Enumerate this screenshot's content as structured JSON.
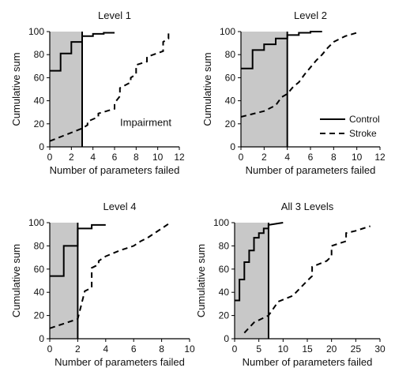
{
  "legend": {
    "placement": "inside panel 2, bottom-right",
    "entries": [
      {
        "name": "Control",
        "style": "solid"
      },
      {
        "name": "Stroke",
        "style": "dashed"
      }
    ]
  },
  "chart_data": [
    {
      "type": "line",
      "title": "Level 1",
      "xlabel": "Number of parameters failed",
      "ylabel": "Cumulative sum",
      "xlim": [
        0,
        12
      ],
      "ylim": [
        0,
        100
      ],
      "xticks": [
        0,
        2,
        4,
        6,
        8,
        10,
        12
      ],
      "yticks": [
        0,
        20,
        40,
        60,
        80,
        100
      ],
      "grid": false,
      "shaded_region": {
        "x": [
          0,
          3
        ],
        "y": [
          0,
          100
        ],
        "color": "#c8c8c8"
      },
      "threshold": {
        "x": 3,
        "label": "Impairment"
      },
      "series": [
        {
          "name": "Control",
          "style": "solid",
          "step": true,
          "x": [
            0,
            1,
            1,
            2,
            2,
            3,
            3,
            4,
            4,
            5,
            5,
            6
          ],
          "y": [
            66,
            66,
            81,
            81,
            91,
            91,
            96,
            96,
            98,
            98,
            99,
            99
          ]
        },
        {
          "name": "Stroke",
          "style": "dashed",
          "x": [
            0,
            3,
            3.5,
            3.5,
            4.5,
            4.5,
            6,
            6,
            6.5,
            6.5,
            7.5,
            7.5,
            8,
            8,
            9,
            9,
            10.5,
            10.5,
            11,
            11
          ],
          "y": [
            5,
            16,
            19,
            22,
            26,
            29,
            33,
            38,
            44,
            51,
            56,
            60,
            63,
            71,
            74,
            78,
            83,
            91,
            94,
            99
          ]
        }
      ]
    },
    {
      "type": "line",
      "title": "Level 2",
      "xlabel": "Number of parameters failed",
      "ylabel": "Cumulative sum",
      "xlim": [
        0,
        12
      ],
      "ylim": [
        0,
        100
      ],
      "xticks": [
        0,
        2,
        4,
        6,
        8,
        10,
        12
      ],
      "yticks": [
        0,
        20,
        40,
        60,
        80,
        100
      ],
      "grid": false,
      "shaded_region": {
        "x": [
          0,
          4
        ],
        "y": [
          0,
          100
        ],
        "color": "#c8c8c8"
      },
      "threshold": {
        "x": 4
      },
      "series": [
        {
          "name": "Control",
          "style": "solid",
          "step": true,
          "x": [
            0,
            1,
            1,
            2,
            2,
            3,
            3,
            4,
            4,
            5,
            5,
            6,
            6,
            7
          ],
          "y": [
            68,
            68,
            84,
            84,
            89,
            89,
            94,
            94,
            97,
            97,
            99,
            99,
            100,
            100
          ]
        },
        {
          "name": "Stroke",
          "style": "dashed",
          "x": [
            0,
            2,
            3,
            3.5,
            4,
            4.5,
            5,
            5.5,
            6,
            6.5,
            7,
            7.5,
            8,
            9,
            10
          ],
          "y": [
            26,
            31,
            36,
            43,
            46,
            52,
            56,
            63,
            69,
            75,
            80,
            86,
            91,
            96,
            99
          ]
        }
      ]
    },
    {
      "type": "line",
      "title": "Level 4",
      "xlabel": "Number of parameters failed",
      "ylabel": "Cumulative sum",
      "xlim": [
        0,
        10
      ],
      "ylim": [
        0,
        100
      ],
      "xticks": [
        0,
        2,
        4,
        6,
        8,
        10
      ],
      "yticks": [
        0,
        20,
        40,
        60,
        80,
        100
      ],
      "grid": false,
      "shaded_region": {
        "x": [
          0,
          2
        ],
        "y": [
          0,
          100
        ],
        "color": "#c8c8c8"
      },
      "threshold": {
        "x": 2
      },
      "series": [
        {
          "name": "Control",
          "style": "solid",
          "step": true,
          "x": [
            0,
            1,
            1,
            2,
            2,
            3,
            3,
            4
          ],
          "y": [
            54,
            54,
            80,
            80,
            95,
            95,
            98,
            98
          ]
        },
        {
          "name": "Stroke",
          "style": "dashed",
          "x": [
            0,
            1,
            2,
            2.5,
            3,
            3,
            3.5,
            3.5,
            4,
            5,
            6,
            6.5,
            7,
            7.5,
            8,
            8.5
          ],
          "y": [
            9,
            13,
            17,
            41,
            44,
            61,
            64,
            67,
            71,
            76,
            80,
            84,
            87,
            91,
            95,
            99
          ]
        }
      ]
    },
    {
      "type": "line",
      "title": "All 3 Levels",
      "xlabel": "Number of parameters failed",
      "ylabel": "Cumulative sum",
      "xlim": [
        0,
        30
      ],
      "ylim": [
        0,
        100
      ],
      "xticks": [
        0,
        5,
        10,
        15,
        20,
        25,
        30
      ],
      "yticks": [
        0,
        20,
        40,
        60,
        80,
        100
      ],
      "grid": false,
      "shaded_region": {
        "x": [
          0,
          7
        ],
        "y": [
          0,
          100
        ],
        "color": "#c8c8c8"
      },
      "threshold": {
        "x": 7
      },
      "series": [
        {
          "name": "Control",
          "style": "solid",
          "step": true,
          "x": [
            0,
            1,
            1,
            2,
            2,
            3,
            3,
            4,
            4,
            5,
            5,
            6,
            6,
            7,
            7,
            10
          ],
          "y": [
            33,
            33,
            51,
            51,
            66,
            66,
            76,
            76,
            87,
            87,
            91,
            91,
            95,
            95,
            98,
            100
          ]
        },
        {
          "name": "Stroke",
          "style": "dashed",
          "x": [
            2,
            4,
            7,
            9,
            12,
            15,
            16,
            16,
            19,
            20,
            20,
            23,
            23,
            25,
            28
          ],
          "y": [
            5,
            14,
            20,
            32,
            37,
            50,
            54,
            62,
            67,
            71,
            80,
            84,
            91,
            93,
            97
          ]
        }
      ]
    }
  ]
}
